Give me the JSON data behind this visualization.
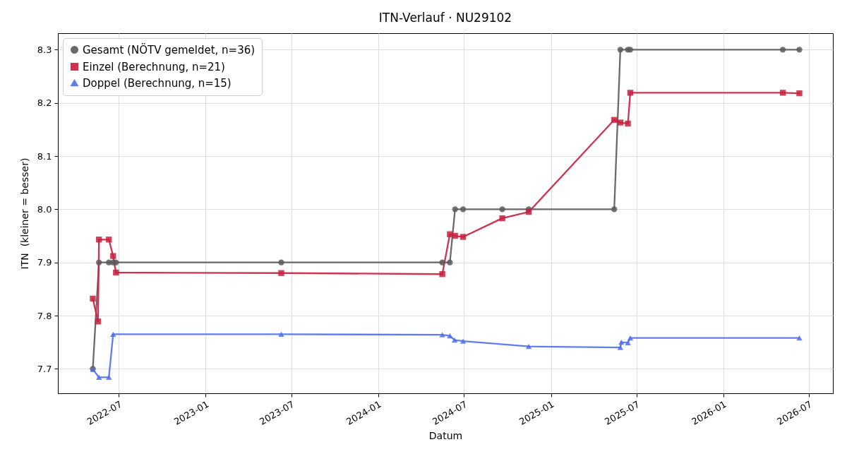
{
  "chart_data": {
    "type": "line",
    "title": "ITN-Verlauf · NU29102",
    "xlabel": "Datum",
    "ylabel": "ITN  (kleiner = besser)",
    "series": [
      {
        "name": "Gesamt (NÖTV gemeldet, n=36)",
        "color": "#5a5a5a",
        "marker": "circle",
        "x": [
          "2022-05-07",
          "2022-05-20",
          "2022-06-10",
          "2022-06-19",
          "2022-06-25",
          "2023-06-10",
          "2024-05-16",
          "2024-06-01",
          "2024-06-12",
          "2024-06-29",
          "2024-09-20",
          "2024-11-15",
          "2025-05-15",
          "2025-05-28",
          "2025-06-13",
          "2025-06-18",
          "2026-05-07",
          "2026-06-11"
        ],
        "values": [
          7.7,
          7.9,
          7.9,
          7.9,
          7.9,
          7.9,
          7.9,
          7.9,
          8.0,
          8.0,
          8.0,
          8.0,
          8.0,
          8.3,
          8.3,
          8.3,
          8.3,
          8.3
        ]
      },
      {
        "name": "Einzel (Berechnung, n=21)",
        "color": "#c81e3c",
        "marker": "square",
        "x": [
          "2022-05-07",
          "2022-05-18",
          "2022-05-20",
          "2022-06-10",
          "2022-06-19",
          "2022-06-25",
          "2023-06-10",
          "2024-05-16",
          "2024-06-01",
          "2024-06-12",
          "2024-06-29",
          "2024-09-20",
          "2024-11-15",
          "2025-05-15",
          "2025-05-28",
          "2025-06-13",
          "2025-06-18",
          "2026-05-07",
          "2026-06-11"
        ],
        "values": [
          7.832,
          7.789,
          7.943,
          7.943,
          7.912,
          7.881,
          7.88,
          7.878,
          7.953,
          7.95,
          7.948,
          7.983,
          7.995,
          8.168,
          8.163,
          8.161,
          8.219,
          8.219,
          8.218
        ]
      },
      {
        "name": "Doppel (Berechnung, n=15)",
        "color": "#4f6ef0",
        "marker": "triangle",
        "x": [
          "2022-05-07",
          "2022-05-20",
          "2022-06-10",
          "2022-06-19",
          "2023-06-10",
          "2024-05-16",
          "2024-06-01",
          "2024-06-11",
          "2024-06-29",
          "2024-11-15",
          "2025-05-28",
          "2025-05-30",
          "2025-06-13",
          "2025-06-18",
          "2026-06-11"
        ],
        "values": [
          7.699,
          7.684,
          7.684,
          7.765,
          7.765,
          7.764,
          7.762,
          7.754,
          7.752,
          7.742,
          7.74,
          7.75,
          7.749,
          7.758,
          7.758
        ]
      }
    ],
    "xlim": [
      "2022-02-22",
      "2026-08-21"
    ],
    "xticks": [
      "2022-07",
      "2023-01",
      "2023-07",
      "2024-01",
      "2024-07",
      "2025-01",
      "2025-07",
      "2026-01",
      "2026-07"
    ],
    "ylim": [
      7.654,
      8.331
    ],
    "yticks": [
      7.7,
      7.8,
      7.9,
      {
        "value": 8.0,
        "label": "8.0"
      },
      8.1,
      8.2,
      8.3
    ],
    "grid": true,
    "legend": "top left",
    "line_style": "solid"
  }
}
